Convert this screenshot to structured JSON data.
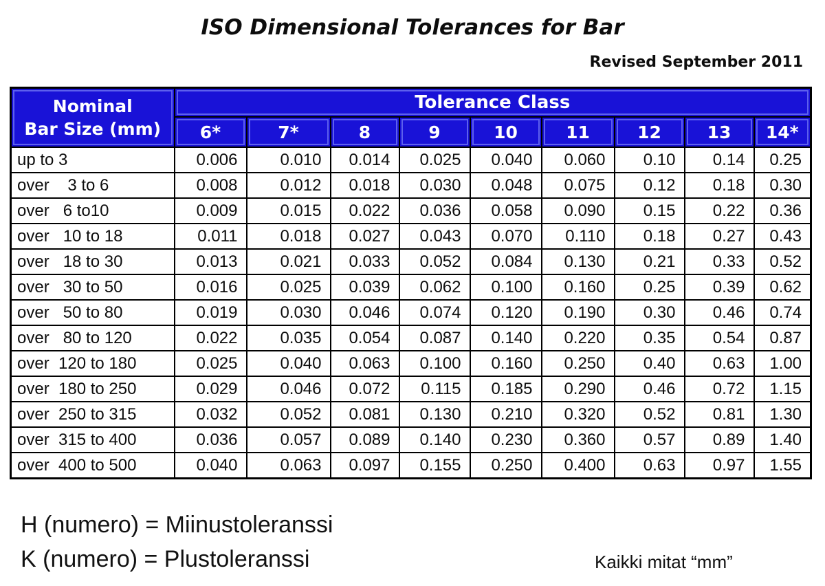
{
  "page": {
    "title": "ISO Dimensional Tolerances for Bar",
    "revision": "Revised September 2011"
  },
  "table": {
    "corner_header_line1": "Nominal",
    "corner_header_line2": "Bar Size (mm)",
    "group_header": "Tolerance Class",
    "columns": [
      "6*",
      "7*",
      "8",
      "9",
      "10",
      "11",
      "12",
      "13",
      "14*"
    ],
    "rows": [
      {
        "label": "up to 3",
        "values": [
          "0.006",
          "0.010",
          "0.014",
          "0.025",
          "0.040",
          "0.060",
          "0.10",
          "0.14",
          "0.25"
        ]
      },
      {
        "label": "over    3 to 6",
        "values": [
          "0.008",
          "0.012",
          "0.018",
          "0.030",
          "0.048",
          "0.075",
          "0.12",
          "0.18",
          "0.30"
        ]
      },
      {
        "label": "over   6 to10",
        "values": [
          "0.009",
          "0.015",
          "0.022",
          "0.036",
          "0.058",
          "0.090",
          "0.15",
          "0.22",
          "0.36"
        ]
      },
      {
        "label": "over   10 to 18",
        "values": [
          "0.011",
          "0.018",
          "0.027",
          "0.043",
          "0.070",
          "0.110",
          "0.18",
          "0.27",
          "0.43"
        ]
      },
      {
        "label": "over   18 to 30",
        "values": [
          "0.013",
          "0.021",
          "0.033",
          "0.052",
          "0.084",
          "0.130",
          "0.21",
          "0.33",
          "0.52"
        ]
      },
      {
        "label": "over   30 to 50",
        "values": [
          "0.016",
          "0.025",
          "0.039",
          "0.062",
          "0.100",
          "0.160",
          "0.25",
          "0.39",
          "0.62"
        ]
      },
      {
        "label": "over   50 to 80",
        "values": [
          "0.019",
          "0.030",
          "0.046",
          "0.074",
          "0.120",
          "0.190",
          "0.30",
          "0.46",
          "0.74"
        ]
      },
      {
        "label": "over   80 to 120",
        "values": [
          "0.022",
          "0.035",
          "0.054",
          "0.087",
          "0.140",
          "0.220",
          "0.35",
          "0.54",
          "0.87"
        ]
      },
      {
        "label": "over  120 to 180",
        "values": [
          "0.025",
          "0.040",
          "0.063",
          "0.100",
          "0.160",
          "0.250",
          "0.40",
          "0.63",
          "1.00"
        ]
      },
      {
        "label": "over  180 to 250",
        "values": [
          "0.029",
          "0.046",
          "0.072",
          "0.115",
          "0.185",
          "0.290",
          "0.46",
          "0.72",
          "1.15"
        ]
      },
      {
        "label": "over  250 to 315",
        "values": [
          "0.032",
          "0.052",
          "0.081",
          "0.130",
          "0.210",
          "0.320",
          "0.52",
          "0.81",
          "1.30"
        ]
      },
      {
        "label": "over  315 to 400",
        "values": [
          "0.036",
          "0.057",
          "0.089",
          "0.140",
          "0.230",
          "0.360",
          "0.57",
          "0.89",
          "1.40"
        ]
      },
      {
        "label": "over  400 to 500",
        "values": [
          "0.040",
          "0.063",
          "0.097",
          "0.155",
          "0.250",
          "0.400",
          "0.63",
          "0.97",
          "1.55"
        ]
      }
    ]
  },
  "footer": {
    "line1": "H (numero) = Miinustoleranssi",
    "line2": "K (numero) = Plustoleranssi",
    "note": "Kaikki mitat “mm”"
  },
  "colors": {
    "header_blue": "#1912d7",
    "header_text": "#ffffff",
    "border": "#000000"
  }
}
